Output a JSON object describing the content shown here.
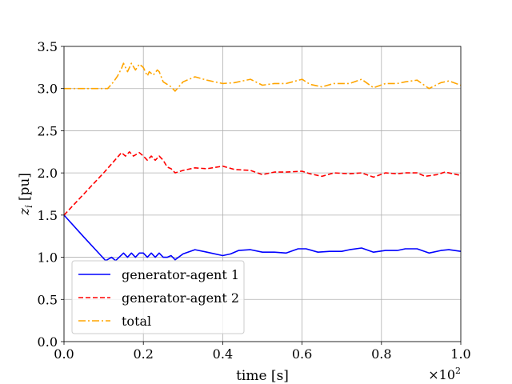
{
  "chart_data": {
    "type": "line",
    "xlabel": "time [s]",
    "ylabel_main": "z",
    "ylabel_sub": "i",
    "ylabel_unit": "[pu]",
    "x_multiplier_base": "×10",
    "x_multiplier_exp": "2",
    "xlim": [
      0.0,
      1.0
    ],
    "ylim": [
      0.0,
      3.5
    ],
    "xticks": [
      "0.0",
      "0.2",
      "0.4",
      "0.6",
      "0.8",
      "1.0"
    ],
    "yticks": [
      "0.0",
      "0.5",
      "1.0",
      "1.5",
      "2.0",
      "2.5",
      "3.0",
      "3.5"
    ],
    "grid": true,
    "legend_position": "lower-left",
    "series": [
      {
        "name": "generator-agent 1",
        "color": "#0000ff",
        "style": "solid",
        "x": [
          0.0,
          0.05,
          0.105,
          0.12,
          0.13,
          0.15,
          0.16,
          0.17,
          0.18,
          0.19,
          0.2,
          0.21,
          0.22,
          0.23,
          0.24,
          0.25,
          0.26,
          0.27,
          0.28,
          0.3,
          0.33,
          0.36,
          0.4,
          0.42,
          0.44,
          0.47,
          0.5,
          0.53,
          0.56,
          0.59,
          0.61,
          0.64,
          0.67,
          0.7,
          0.72,
          0.75,
          0.78,
          0.81,
          0.84,
          0.86,
          0.89,
          0.92,
          0.95,
          0.97,
          1.0
        ],
        "values": [
          1.5,
          1.24,
          0.96,
          1.0,
          0.96,
          1.05,
          1.0,
          1.05,
          1.0,
          1.05,
          1.05,
          1.0,
          1.05,
          1.0,
          1.05,
          1.0,
          1.0,
          1.02,
          0.97,
          1.04,
          1.09,
          1.06,
          1.02,
          1.04,
          1.08,
          1.09,
          1.06,
          1.06,
          1.05,
          1.1,
          1.1,
          1.06,
          1.07,
          1.07,
          1.09,
          1.11,
          1.06,
          1.08,
          1.08,
          1.1,
          1.1,
          1.05,
          1.08,
          1.09,
          1.07
        ]
      },
      {
        "name": "generator-agent 2",
        "color": "#ff0000",
        "style": "dashed",
        "x": [
          0.0,
          0.05,
          0.1,
          0.145,
          0.155,
          0.165,
          0.175,
          0.19,
          0.2,
          0.21,
          0.22,
          0.23,
          0.24,
          0.25,
          0.26,
          0.27,
          0.28,
          0.3,
          0.33,
          0.36,
          0.4,
          0.43,
          0.47,
          0.5,
          0.53,
          0.56,
          0.6,
          0.62,
          0.65,
          0.68,
          0.72,
          0.75,
          0.78,
          0.81,
          0.84,
          0.86,
          0.89,
          0.91,
          0.94,
          0.96,
          1.0
        ],
        "values": [
          1.5,
          1.75,
          2.0,
          2.24,
          2.2,
          2.25,
          2.2,
          2.24,
          2.2,
          2.15,
          2.2,
          2.15,
          2.2,
          2.15,
          2.07,
          2.05,
          2.0,
          2.03,
          2.06,
          2.05,
          2.08,
          2.04,
          2.03,
          1.98,
          2.01,
          2.01,
          2.02,
          1.99,
          1.96,
          2.0,
          1.99,
          2.0,
          1.95,
          2.0,
          1.99,
          2.0,
          2.0,
          1.96,
          1.98,
          2.01,
          1.97
        ]
      },
      {
        "name": "total",
        "color": "#ffa500",
        "style": "dashdot",
        "x": [
          0.0,
          0.05,
          0.11,
          0.125,
          0.135,
          0.145,
          0.15,
          0.16,
          0.17,
          0.18,
          0.19,
          0.2,
          0.21,
          0.215,
          0.225,
          0.235,
          0.24,
          0.25,
          0.26,
          0.27,
          0.28,
          0.3,
          0.33,
          0.36,
          0.4,
          0.43,
          0.47,
          0.5,
          0.53,
          0.56,
          0.6,
          0.62,
          0.65,
          0.68,
          0.72,
          0.75,
          0.78,
          0.81,
          0.84,
          0.86,
          0.89,
          0.92,
          0.95,
          0.97,
          1.0
        ],
        "values": [
          3.0,
          3.0,
          3.0,
          3.08,
          3.15,
          3.24,
          3.3,
          3.2,
          3.3,
          3.22,
          3.29,
          3.25,
          3.15,
          3.2,
          3.16,
          3.22,
          3.2,
          3.08,
          3.05,
          3.02,
          2.97,
          3.08,
          3.14,
          3.1,
          3.06,
          3.07,
          3.11,
          3.04,
          3.06,
          3.06,
          3.11,
          3.05,
          3.02,
          3.06,
          3.06,
          3.11,
          3.01,
          3.06,
          3.06,
          3.08,
          3.1,
          3.0,
          3.07,
          3.09,
          3.04
        ]
      }
    ]
  }
}
